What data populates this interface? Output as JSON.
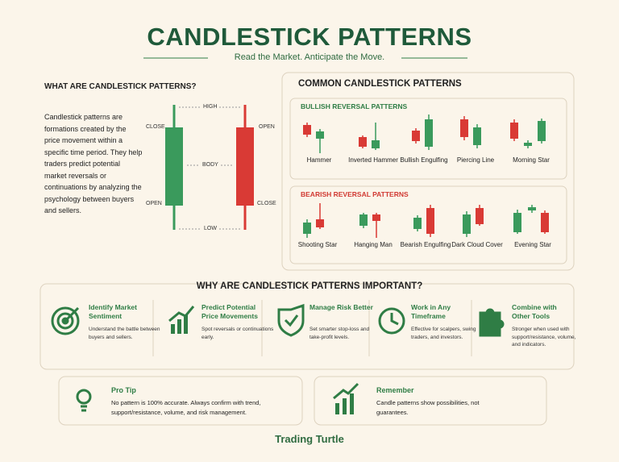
{
  "header": {
    "title": "CANDLESTICK PATTERNS",
    "subtitle": "Read the Market. Anticipate the Move."
  },
  "intro": {
    "heading": "WHAT ARE CANDLESTICK PATTERNS?",
    "body": "Candlestick patterns are formations created by the price movement within a specific time period. They help traders predict potential market reversals or continuations by analyzing the psychology between buyers and sellers."
  },
  "diagram": {
    "high": "HIGH",
    "close_left": "CLOSE",
    "open_left": "OPEN",
    "body": "BODY",
    "open_right": "OPEN",
    "close_right": "CLOSE",
    "low": "LOW"
  },
  "patterns": {
    "heading": "COMMON CANDLESTICK PATTERNS",
    "bullish": {
      "title": "BULLISH REVERSAL PATTERNS",
      "items": [
        "Hammer",
        "Inverted Hammer",
        "Bullish Engulfing",
        "Piercing Line",
        "Morning Star"
      ]
    },
    "bearish": {
      "title": "BEARISH REVERSAL PATTERNS",
      "items": [
        "Shooting Star",
        "Hanging Man",
        "Bearish Engulfing",
        "Dark Cloud Cover",
        "Evening Star"
      ]
    }
  },
  "why": {
    "heading": "WHY ARE CANDLESTICK PATTERNS IMPORTANT?",
    "items": [
      {
        "title": "Identify Market Sentiment",
        "text": "Understand the battle between buyers and sellers."
      },
      {
        "title": "Predict Potential Price Movements",
        "text": "Spot reversals or continuations early."
      },
      {
        "title": "Manage Risk Better",
        "text": "Set smarter stop-loss and take-profit levels."
      },
      {
        "title": "Work in Any Timeframe",
        "text": "Effective for scalpers, swing traders, and investors."
      },
      {
        "title": "Combine with Other Tools",
        "text": "Stronger when used with support/resistance, volume, and indicators."
      }
    ]
  },
  "tips": [
    {
      "title": "Pro Tip",
      "text": "No pattern is 100% accurate. Always confirm with trend, support/resistance, volume, and risk management."
    },
    {
      "title": "Remember",
      "text": "Candle patterns show possibilities, not guarantees."
    }
  ],
  "brand": "Trading Turtle"
}
